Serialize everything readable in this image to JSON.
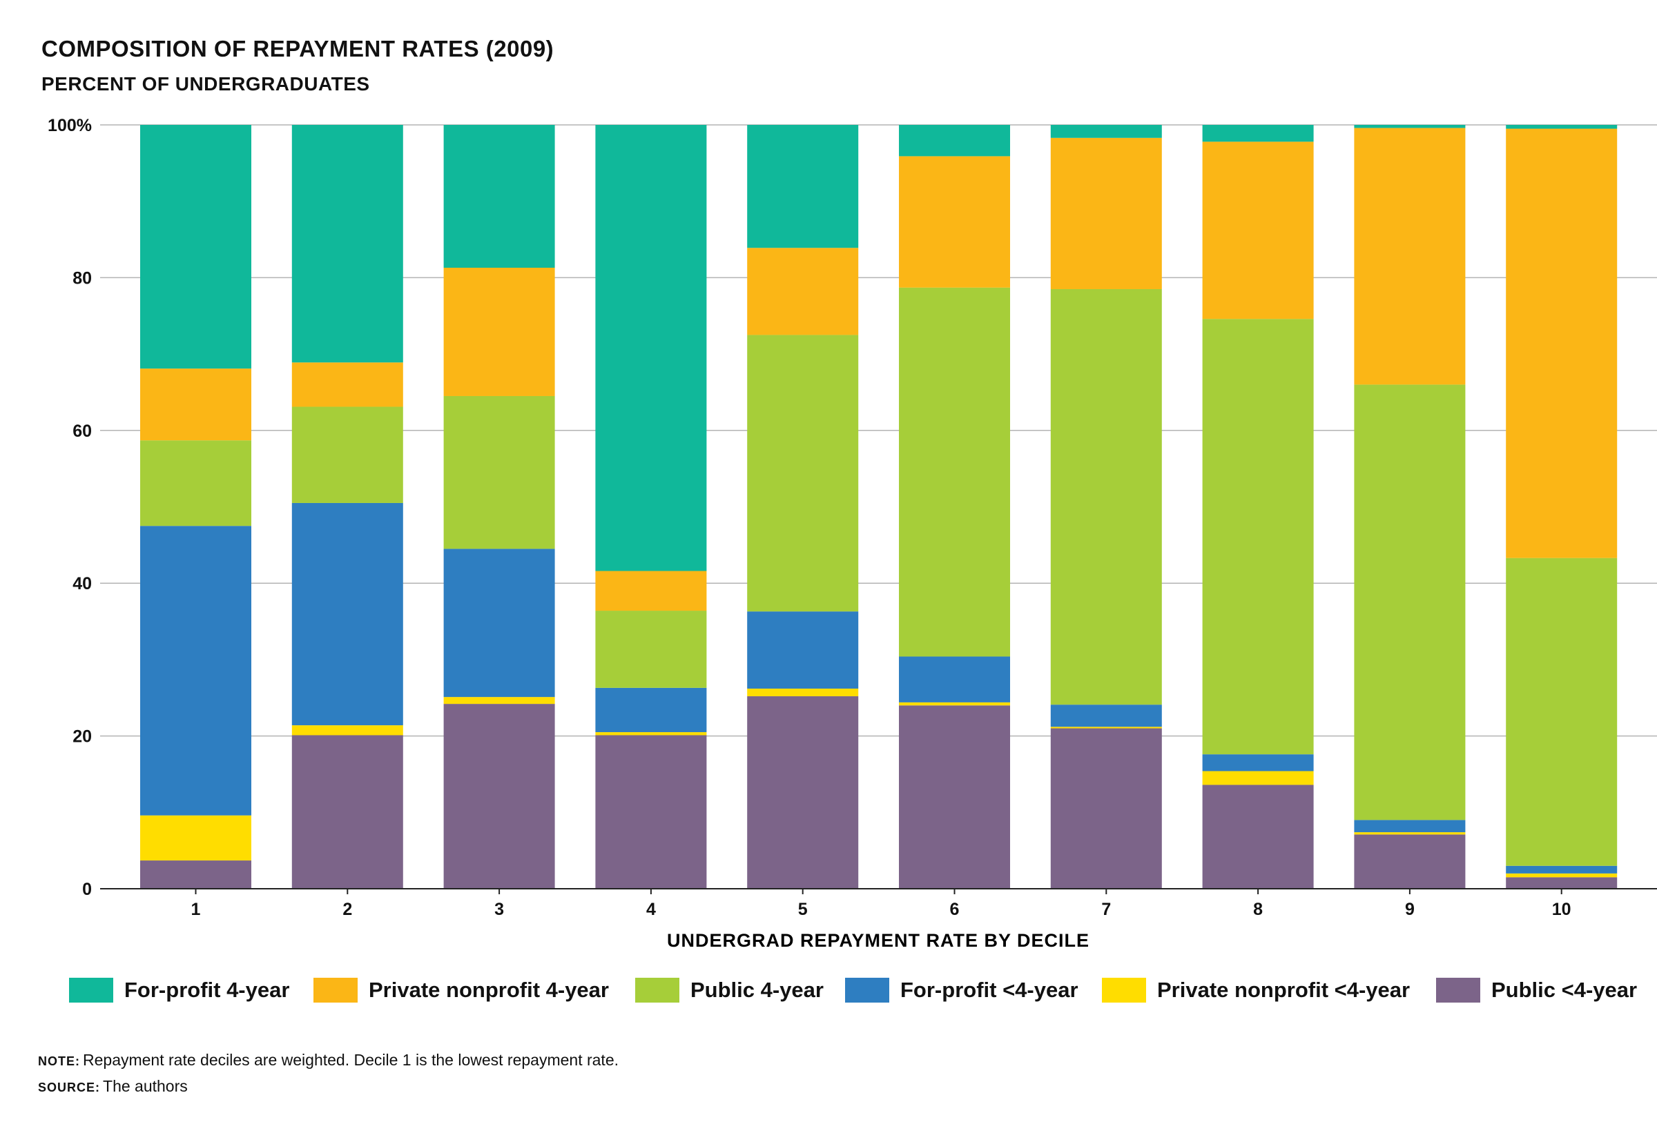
{
  "header": {
    "title": "COMPOSITION OF REPAYMENT RATES (2009)",
    "subtitle": "PERCENT OF UNDERGRADUATES"
  },
  "chart_data": {
    "type": "bar",
    "stacked": true,
    "categories": [
      "1",
      "2",
      "3",
      "4",
      "5",
      "6",
      "7",
      "8",
      "9",
      "10"
    ],
    "xlabel": "UNDERGRAD REPAYMENT RATE BY DECILE",
    "ylabel": "",
    "ylim": [
      0,
      100
    ],
    "yticks": [
      0,
      20,
      40,
      60,
      80,
      100
    ],
    "ytick_labels": [
      "0",
      "20",
      "40",
      "60",
      "80",
      "100%"
    ],
    "grid": true,
    "legend_position": "bottom",
    "series": [
      {
        "name": "Public <4-year",
        "color": "#7c6489",
        "values": [
          3.7,
          20.1,
          24.2,
          20.1,
          25.2,
          24.0,
          21.0,
          13.6,
          7.1,
          1.5
        ]
      },
      {
        "name": "Private nonprofit <4-year",
        "color": "#ffdd00",
        "values": [
          5.9,
          1.3,
          0.9,
          0.4,
          1.0,
          0.4,
          0.2,
          1.8,
          0.3,
          0.5
        ]
      },
      {
        "name": "For-profit <4-year",
        "color": "#2e7ec1",
        "values": [
          37.9,
          29.1,
          19.4,
          5.8,
          10.1,
          6.0,
          2.9,
          2.2,
          1.6,
          1.0
        ]
      },
      {
        "name": "Public 4-year",
        "color": "#a6ce39",
        "values": [
          11.2,
          12.6,
          20.0,
          10.1,
          36.2,
          48.3,
          54.4,
          57.0,
          57.0,
          40.3
        ]
      },
      {
        "name": "Private nonprofit 4-year",
        "color": "#fbb616",
        "values": [
          9.4,
          5.8,
          16.8,
          5.2,
          11.4,
          17.2,
          19.8,
          23.2,
          33.6,
          56.2
        ]
      },
      {
        "name": "For-profit 4-year",
        "color": "#10b89a",
        "values": [
          31.9,
          31.1,
          18.7,
          58.4,
          16.1,
          4.1,
          1.7,
          2.2,
          0.4,
          0.5
        ]
      }
    ]
  },
  "legend": {
    "items": [
      {
        "label": "For-profit 4-year",
        "color": "#10b89a"
      },
      {
        "label": "Private nonprofit 4-year",
        "color": "#fbb616"
      },
      {
        "label": "Public 4-year",
        "color": "#a6ce39"
      },
      {
        "label": "For-profit <4-year",
        "color": "#2e7ec1"
      },
      {
        "label": "Private nonprofit <4-year",
        "color": "#ffdd00"
      },
      {
        "label": "Public <4-year",
        "color": "#7c6489"
      }
    ]
  },
  "notes": {
    "note_key": "NOTE:",
    "note_text": "Repayment rate deciles are weighted. Decile 1 is the lowest repayment rate.",
    "source_key": "SOURCE:",
    "source_text": "The authors"
  }
}
